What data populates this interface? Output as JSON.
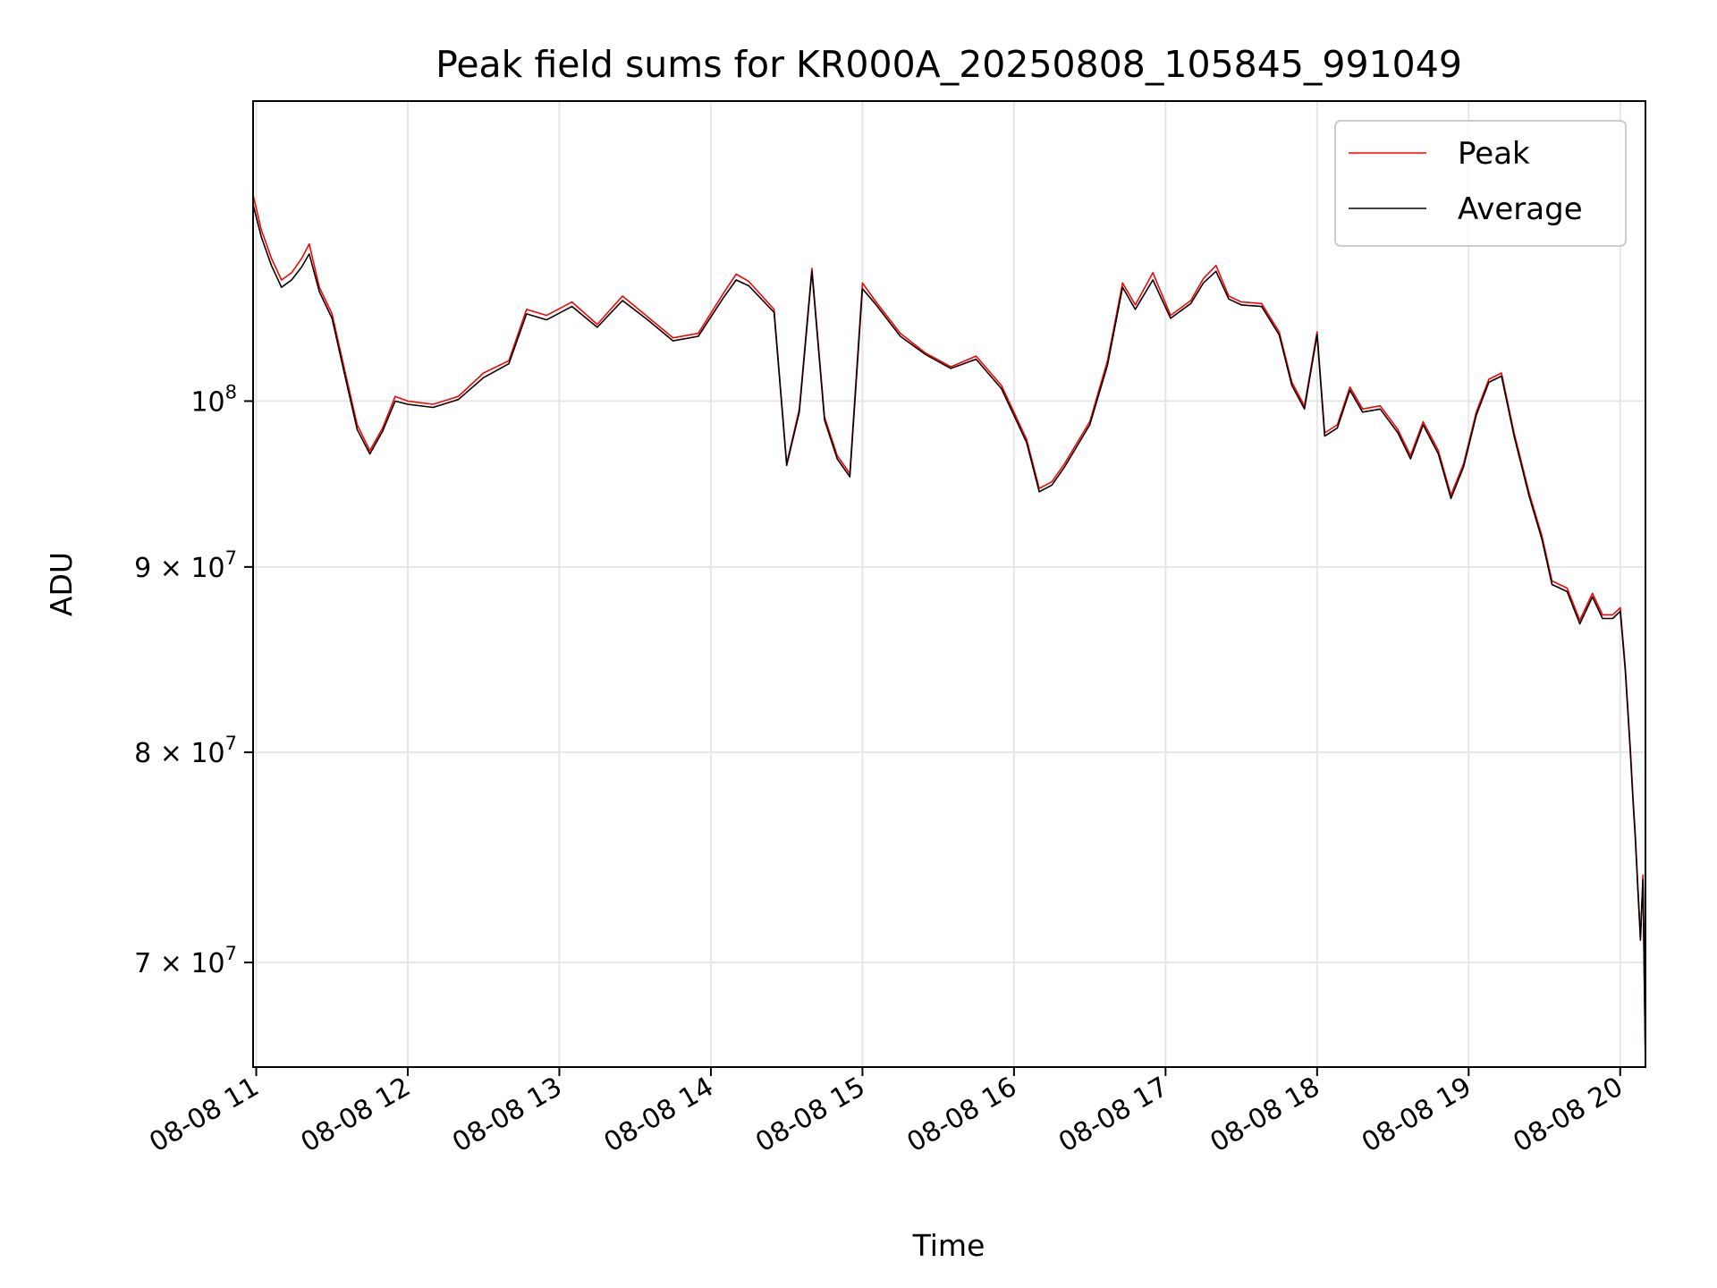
{
  "chart_data": {
    "type": "line",
    "title": "Peak field sums for KR000A_20250808_105845_991049",
    "xlabel": "Time",
    "ylabel": "ADU",
    "x_scale": "time",
    "y_scale": "log",
    "xlim": [
      "2025-08-08 10:58:45",
      "2025-08-08 20:10:00"
    ],
    "ylim": [
      65500000,
      121000000
    ],
    "grid": true,
    "legend_position": "top-right",
    "x_ticks": [
      {
        "value": "2025-08-08 11:00",
        "label": "08-08 11"
      },
      {
        "value": "2025-08-08 12:00",
        "label": "08-08 12"
      },
      {
        "value": "2025-08-08 13:00",
        "label": "08-08 13"
      },
      {
        "value": "2025-08-08 14:00",
        "label": "08-08 14"
      },
      {
        "value": "2025-08-08 15:00",
        "label": "08-08 15"
      },
      {
        "value": "2025-08-08 16:00",
        "label": "08-08 16"
      },
      {
        "value": "2025-08-08 17:00",
        "label": "08-08 17"
      },
      {
        "value": "2025-08-08 18:00",
        "label": "08-08 18"
      },
      {
        "value": "2025-08-08 19:00",
        "label": "08-08 19"
      },
      {
        "value": "2025-08-08 20:00",
        "label": "08-08 20"
      }
    ],
    "y_ticks": [
      {
        "value": 100000000,
        "mantissa": "",
        "base": "10",
        "exponent": "8"
      },
      {
        "value": 90000000,
        "mantissa": "9 × ",
        "base": "10",
        "exponent": "7"
      },
      {
        "value": 80000000,
        "mantissa": "8 × ",
        "base": "10",
        "exponent": "7"
      },
      {
        "value": 70000000,
        "mantissa": "7 × ",
        "base": "10",
        "exponent": "7"
      }
    ],
    "series": [
      {
        "name": "Peak",
        "color": "#ff0000",
        "points": [
          [
            "2025-08-08 10:58:45",
            114000000
          ],
          [
            "2025-08-08 11:02",
            111500000
          ],
          [
            "2025-08-08 11:06",
            109500000
          ],
          [
            "2025-08-08 11:10",
            108000000
          ],
          [
            "2025-08-08 11:14",
            108500000
          ],
          [
            "2025-08-08 11:18",
            109500000
          ],
          [
            "2025-08-08 11:21",
            110500000
          ],
          [
            "2025-08-08 11:25",
            107500000
          ],
          [
            "2025-08-08 11:30",
            105700000
          ],
          [
            "2025-08-08 11:35",
            102000000
          ],
          [
            "2025-08-08 11:40",
            98500000
          ],
          [
            "2025-08-08 11:45",
            96900000
          ],
          [
            "2025-08-08 11:50",
            98300000
          ],
          [
            "2025-08-08 11:55",
            100300000
          ],
          [
            "2025-08-08 12:00",
            100000000
          ],
          [
            "2025-08-08 12:10",
            99800000
          ],
          [
            "2025-08-08 12:20",
            100300000
          ],
          [
            "2025-08-08 12:30",
            101800000
          ],
          [
            "2025-08-08 12:40",
            102600000
          ],
          [
            "2025-08-08 12:47",
            106000000
          ],
          [
            "2025-08-08 12:55",
            105600000
          ],
          [
            "2025-08-08 13:05",
            106500000
          ],
          [
            "2025-08-08 13:15",
            105000000
          ],
          [
            "2025-08-08 13:25",
            106900000
          ],
          [
            "2025-08-08 13:35",
            105500000
          ],
          [
            "2025-08-08 13:45",
            104100000
          ],
          [
            "2025-08-08 13:55",
            104400000
          ],
          [
            "2025-08-08 14:05",
            107100000
          ],
          [
            "2025-08-08 14:10",
            108400000
          ],
          [
            "2025-08-08 14:15",
            107900000
          ],
          [
            "2025-08-08 14:25",
            106000000
          ],
          [
            "2025-08-08 14:30",
            96100000
          ],
          [
            "2025-08-08 14:35",
            99500000
          ],
          [
            "2025-08-08 14:40",
            108800000
          ],
          [
            "2025-08-08 14:45",
            99000000
          ],
          [
            "2025-08-08 14:50",
            96600000
          ],
          [
            "2025-08-08 14:55",
            95500000
          ],
          [
            "2025-08-08 15:00",
            107800000
          ],
          [
            "2025-08-08 15:05",
            106600000
          ],
          [
            "2025-08-08 15:15",
            104400000
          ],
          [
            "2025-08-08 15:25",
            103100000
          ],
          [
            "2025-08-08 15:35",
            102200000
          ],
          [
            "2025-08-08 15:45",
            102900000
          ],
          [
            "2025-08-08 15:55",
            101000000
          ],
          [
            "2025-08-08 16:05",
            97600000
          ],
          [
            "2025-08-08 16:10",
            94600000
          ],
          [
            "2025-08-08 16:15",
            95000000
          ],
          [
            "2025-08-08 16:20",
            96100000
          ],
          [
            "2025-08-08 16:30",
            98700000
          ],
          [
            "2025-08-08 16:37",
            102600000
          ],
          [
            "2025-08-08 16:43",
            107800000
          ],
          [
            "2025-08-08 16:48",
            106300000
          ],
          [
            "2025-08-08 16:55",
            108500000
          ],
          [
            "2025-08-08 17:02",
            105600000
          ],
          [
            "2025-08-08 17:10",
            106600000
          ],
          [
            "2025-08-08 17:15",
            108100000
          ],
          [
            "2025-08-08 17:20",
            109000000
          ],
          [
            "2025-08-08 17:25",
            106900000
          ],
          [
            "2025-08-08 17:30",
            106500000
          ],
          [
            "2025-08-08 17:38",
            106400000
          ],
          [
            "2025-08-08 17:45",
            104500000
          ],
          [
            "2025-08-08 17:50",
            101200000
          ],
          [
            "2025-08-08 17:55",
            99700000
          ],
          [
            "2025-08-08 18:00",
            104500000
          ],
          [
            "2025-08-08 18:03",
            98000000
          ],
          [
            "2025-08-08 18:08",
            98500000
          ],
          [
            "2025-08-08 18:13",
            100900000
          ],
          [
            "2025-08-08 18:18",
            99500000
          ],
          [
            "2025-08-08 18:25",
            99700000
          ],
          [
            "2025-08-08 18:32",
            98200000
          ],
          [
            "2025-08-08 18:37",
            96600000
          ],
          [
            "2025-08-08 18:42",
            98700000
          ],
          [
            "2025-08-08 18:48",
            96900000
          ],
          [
            "2025-08-08 18:53",
            94200000
          ],
          [
            "2025-08-08 18:58",
            96100000
          ],
          [
            "2025-08-08 19:03",
            99300000
          ],
          [
            "2025-08-08 19:08",
            101400000
          ],
          [
            "2025-08-08 19:13",
            101800000
          ],
          [
            "2025-08-08 19:18",
            98000000
          ],
          [
            "2025-08-08 19:24",
            94300000
          ],
          [
            "2025-08-08 19:29",
            91800000
          ],
          [
            "2025-08-08 19:33",
            89200000
          ],
          [
            "2025-08-08 19:39",
            88800000
          ],
          [
            "2025-08-08 19:44",
            87000000
          ],
          [
            "2025-08-08 19:49",
            88500000
          ],
          [
            "2025-08-08 19:53",
            87300000
          ],
          [
            "2025-08-08 19:57",
            87300000
          ],
          [
            "2025-08-08 20:00",
            87700000
          ],
          [
            "2025-08-08 20:02",
            84500000
          ],
          [
            "2025-08-08 20:04",
            80200000
          ],
          [
            "2025-08-08 20:05",
            77900000
          ],
          [
            "2025-08-08 20:06",
            75900000
          ],
          [
            "2025-08-08 20:07",
            73500000
          ],
          [
            "2025-08-08 20:08",
            71200000
          ],
          [
            "2025-08-08 20:09",
            74000000
          ],
          [
            "2025-08-08 20:10",
            65600000
          ]
        ]
      },
      {
        "name": "Average",
        "color": "#000000",
        "points": [
          [
            "2025-08-08 10:58:45",
            113300000
          ],
          [
            "2025-08-08 11:02",
            111000000
          ],
          [
            "2025-08-08 11:06",
            109000000
          ],
          [
            "2025-08-08 11:10",
            107500000
          ],
          [
            "2025-08-08 11:14",
            108000000
          ],
          [
            "2025-08-08 11:18",
            108900000
          ],
          [
            "2025-08-08 11:21",
            109800000
          ],
          [
            "2025-08-08 11:25",
            107200000
          ],
          [
            "2025-08-08 11:30",
            105400000
          ],
          [
            "2025-08-08 11:35",
            101700000
          ],
          [
            "2025-08-08 11:40",
            98200000
          ],
          [
            "2025-08-08 11:45",
            96700000
          ],
          [
            "2025-08-08 11:50",
            98100000
          ],
          [
            "2025-08-08 11:55",
            100000000
          ],
          [
            "2025-08-08 12:00",
            99800000
          ],
          [
            "2025-08-08 12:10",
            99600000
          ],
          [
            "2025-08-08 12:20",
            100100000
          ],
          [
            "2025-08-08 12:30",
            101500000
          ],
          [
            "2025-08-08 12:40",
            102400000
          ],
          [
            "2025-08-08 12:47",
            105700000
          ],
          [
            "2025-08-08 12:55",
            105300000
          ],
          [
            "2025-08-08 13:05",
            106200000
          ],
          [
            "2025-08-08 13:15",
            104800000
          ],
          [
            "2025-08-08 13:25",
            106600000
          ],
          [
            "2025-08-08 13:35",
            105300000
          ],
          [
            "2025-08-08 13:45",
            103900000
          ],
          [
            "2025-08-08 13:55",
            104200000
          ],
          [
            "2025-08-08 14:05",
            106800000
          ],
          [
            "2025-08-08 14:10",
            108000000
          ],
          [
            "2025-08-08 14:15",
            107600000
          ],
          [
            "2025-08-08 14:25",
            105800000
          ],
          [
            "2025-08-08 14:30",
            96000000
          ],
          [
            "2025-08-08 14:35",
            99300000
          ],
          [
            "2025-08-08 14:40",
            108600000
          ],
          [
            "2025-08-08 14:45",
            98800000
          ],
          [
            "2025-08-08 14:50",
            96400000
          ],
          [
            "2025-08-08 14:55",
            95300000
          ],
          [
            "2025-08-08 15:00",
            107400000
          ],
          [
            "2025-08-08 15:05",
            106400000
          ],
          [
            "2025-08-08 15:15",
            104200000
          ],
          [
            "2025-08-08 15:25",
            103000000
          ],
          [
            "2025-08-08 15:35",
            102100000
          ],
          [
            "2025-08-08 15:45",
            102700000
          ],
          [
            "2025-08-08 15:55",
            100800000
          ],
          [
            "2025-08-08 16:05",
            97400000
          ],
          [
            "2025-08-08 16:10",
            94400000
          ],
          [
            "2025-08-08 16:15",
            94800000
          ],
          [
            "2025-08-08 16:20",
            95900000
          ],
          [
            "2025-08-08 16:30",
            98500000
          ],
          [
            "2025-08-08 16:37",
            102300000
          ],
          [
            "2025-08-08 16:43",
            107500000
          ],
          [
            "2025-08-08 16:48",
            106000000
          ],
          [
            "2025-08-08 16:55",
            108000000
          ],
          [
            "2025-08-08 17:02",
            105400000
          ],
          [
            "2025-08-08 17:10",
            106400000
          ],
          [
            "2025-08-08 17:15",
            107800000
          ],
          [
            "2025-08-08 17:20",
            108600000
          ],
          [
            "2025-08-08 17:25",
            106700000
          ],
          [
            "2025-08-08 17:30",
            106300000
          ],
          [
            "2025-08-08 17:38",
            106200000
          ],
          [
            "2025-08-08 17:45",
            104300000
          ],
          [
            "2025-08-08 17:50",
            101000000
          ],
          [
            "2025-08-08 17:55",
            99500000
          ],
          [
            "2025-08-08 18:00",
            104300000
          ],
          [
            "2025-08-08 18:03",
            97800000
          ],
          [
            "2025-08-08 18:08",
            98300000
          ],
          [
            "2025-08-08 18:13",
            100700000
          ],
          [
            "2025-08-08 18:18",
            99300000
          ],
          [
            "2025-08-08 18:25",
            99500000
          ],
          [
            "2025-08-08 18:32",
            98000000
          ],
          [
            "2025-08-08 18:37",
            96400000
          ],
          [
            "2025-08-08 18:42",
            98500000
          ],
          [
            "2025-08-08 18:48",
            96700000
          ],
          [
            "2025-08-08 18:53",
            94000000
          ],
          [
            "2025-08-08 18:58",
            95900000
          ],
          [
            "2025-08-08 19:03",
            99100000
          ],
          [
            "2025-08-08 19:08",
            101200000
          ],
          [
            "2025-08-08 19:13",
            101600000
          ],
          [
            "2025-08-08 19:18",
            97800000
          ],
          [
            "2025-08-08 19:24",
            94100000
          ],
          [
            "2025-08-08 19:29",
            91600000
          ],
          [
            "2025-08-08 19:33",
            89000000
          ],
          [
            "2025-08-08 19:39",
            88600000
          ],
          [
            "2025-08-08 19:44",
            86800000
          ],
          [
            "2025-08-08 19:49",
            88300000
          ],
          [
            "2025-08-08 19:53",
            87100000
          ],
          [
            "2025-08-08 19:57",
            87100000
          ],
          [
            "2025-08-08 20:00",
            87500000
          ],
          [
            "2025-08-08 20:02",
            84300000
          ],
          [
            "2025-08-08 20:04",
            80000000
          ],
          [
            "2025-08-08 20:05",
            77700000
          ],
          [
            "2025-08-08 20:06",
            75700000
          ],
          [
            "2025-08-08 20:07",
            73300000
          ],
          [
            "2025-08-08 20:08",
            71000000
          ],
          [
            "2025-08-08 20:09",
            73800000
          ],
          [
            "2025-08-08 20:10",
            65500000
          ]
        ]
      }
    ]
  }
}
